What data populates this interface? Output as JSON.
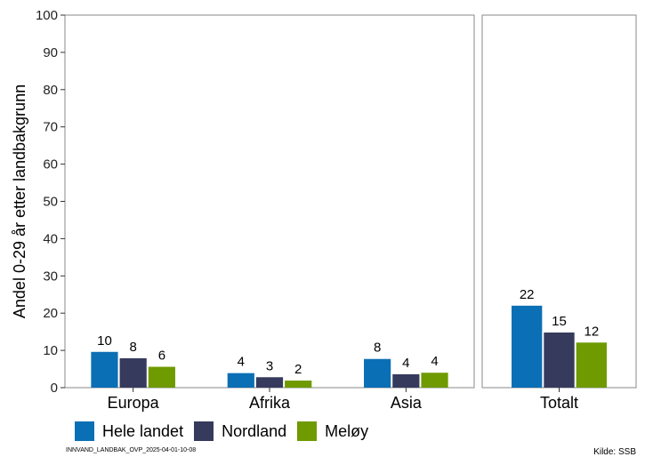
{
  "chart_data": {
    "type": "bar",
    "ylabel": "Andel 0-29 år etter landbakgrunn",
    "ylim": [
      0,
      100
    ],
    "yticks": [
      0,
      10,
      20,
      30,
      40,
      50,
      60,
      70,
      80,
      90,
      100
    ],
    "grid": false,
    "legend_position": "bottom",
    "panels": [
      {
        "categories": [
          "Europa",
          "Afrika",
          "Asia"
        ]
      },
      {
        "categories": [
          "Totalt"
        ]
      }
    ],
    "series": [
      {
        "name": "Hele landet",
        "color": "#0b6fb5",
        "values": [
          9.6,
          3.9,
          7.7,
          22.0
        ],
        "labels": [
          "10",
          "4",
          "8",
          "22"
        ]
      },
      {
        "name": "Nordland",
        "color": "#363a5c",
        "values": [
          7.9,
          2.8,
          3.6,
          14.8
        ],
        "labels": [
          "8",
          "3",
          "4",
          "15"
        ]
      },
      {
        "name": "Meløy",
        "color": "#6f9a00",
        "values": [
          5.6,
          1.9,
          4.0,
          12.1
        ],
        "labels": [
          "6",
          "2",
          "4",
          "12"
        ]
      }
    ]
  },
  "footnote": "INNVAND_LANDBAK_OVP_2025-04-01-10-08",
  "source": "Kilde: SSB"
}
